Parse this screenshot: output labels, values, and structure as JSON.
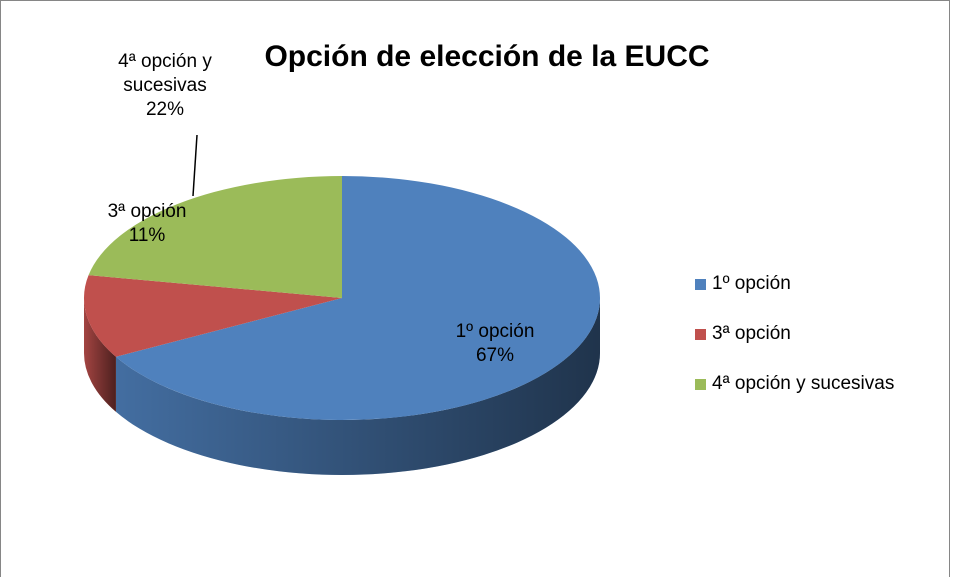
{
  "chart_data": {
    "type": "pie",
    "title": "Opción de elección de la EUCC",
    "categories": [
      "1º opción",
      "3ª opción",
      "4ª opción y sucesivas"
    ],
    "values": [
      67,
      11,
      22
    ],
    "value_labels": [
      "67%",
      "11%",
      "22%"
    ],
    "colors": [
      "#4f81bd",
      "#c0504d",
      "#9bbb59"
    ],
    "legend": "right"
  }
}
